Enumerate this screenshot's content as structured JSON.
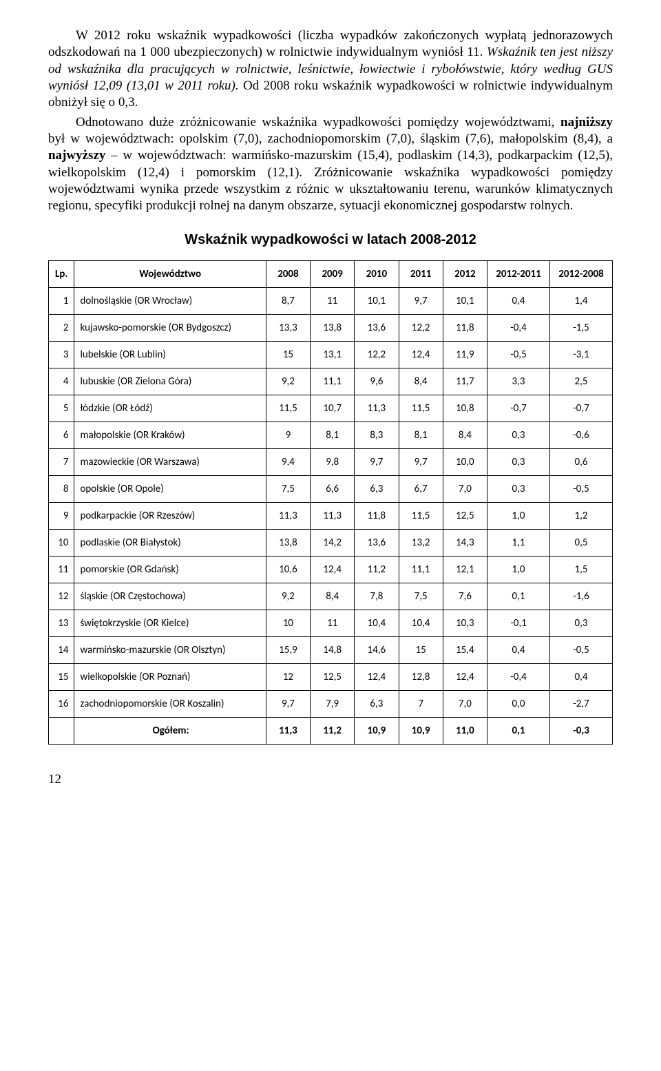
{
  "paragraphs": {
    "p1_a": "W 2012 roku wskaźnik wypadkowości (liczba wypadków zakończonych wypłatą jednorazowych odszkodowań na 1 000 ubezpieczonych) w rolnictwie indywidualnym wyniósł 11.",
    "p1_b_italic": "Wskaźnik ten jest niższy od wskaźnika dla pracujących w rolnictwie, leśnictwie, łowiectwie i rybołówstwie, który według GUS wyniósł 12,09 (13,01 w 2011 roku).",
    "p1_c": " Od 2008 roku wskaźnik wypadkowości w rolnictwie indywidualnym obniżył się o 0,3.",
    "p2_a": "Odnotowano duże zróżnicowanie wskaźnika wypadkowości pomiędzy województwami, ",
    "p2_bold1": "najniższy",
    "p2_b": " był w województwach: opolskim (7,0), zachodniopomorskim (7,0), śląskim (7,6), małopolskim (8,4), a ",
    "p2_bold2": "najwyższy",
    "p2_c": " – w województwach: warmińsko-mazurskim (15,4), podlaskim (14,3), podkarpackim (12,5), wielkopolskim (12,4) i pomorskim (12,1). Zróżnicowanie wskaźnika wypadkowości pomiędzy województwami wynika przede wszystkim z różnic w ukształtowaniu terenu, warunków klimatycznych regionu, specyfiki produkcji rolnej na danym obszarze, sytuacji ekonomicznej gospodarstw rolnych."
  },
  "table_title": "Wskaźnik wypadkowości w latach 2008-2012",
  "columns": [
    "Lp.",
    "Województwo",
    "2008",
    "2009",
    "2010",
    "2011",
    "2012",
    "2012-2011",
    "2012-2008"
  ],
  "rows": [
    [
      "1",
      "dolnośląskie (OR Wrocław)",
      "8,7",
      "11",
      "10,1",
      "9,7",
      "10,1",
      "0,4",
      "1,4"
    ],
    [
      "2",
      "kujawsko-pomorskie (OR Bydgoszcz)",
      "13,3",
      "13,8",
      "13,6",
      "12,2",
      "11,8",
      "-0,4",
      "-1,5"
    ],
    [
      "3",
      "lubelskie (OR Lublin)",
      "15",
      "13,1",
      "12,2",
      "12,4",
      "11,9",
      "-0,5",
      "-3,1"
    ],
    [
      "4",
      "lubuskie (OR Zielona Góra)",
      "9,2",
      "11,1",
      "9,6",
      "8,4",
      "11,7",
      "3,3",
      "2,5"
    ],
    [
      "5",
      "łódzkie (OR Łódź)",
      "11,5",
      "10,7",
      "11,3",
      "11,5",
      "10,8",
      "-0,7",
      "-0,7"
    ],
    [
      "6",
      "małopolskie (OR Kraków)",
      "9",
      "8,1",
      "8,3",
      "8,1",
      "8,4",
      "0,3",
      "-0,6"
    ],
    [
      "7",
      "mazowieckie (OR Warszawa)",
      "9,4",
      "9,8",
      "9,7",
      "9,7",
      "10,0",
      "0,3",
      "0,6"
    ],
    [
      "8",
      "opolskie (OR Opole)",
      "7,5",
      "6,6",
      "6,3",
      "6,7",
      "7,0",
      "0,3",
      "-0,5"
    ],
    [
      "9",
      "podkarpackie (OR Rzeszów)",
      "11,3",
      "11,3",
      "11,8",
      "11,5",
      "12,5",
      "1,0",
      "1,2"
    ],
    [
      "10",
      "podlaskie (OR Białystok)",
      "13,8",
      "14,2",
      "13,6",
      "13,2",
      "14,3",
      "1,1",
      "0,5"
    ],
    [
      "11",
      "pomorskie (OR Gdańsk)",
      "10,6",
      "12,4",
      "11,2",
      "11,1",
      "12,1",
      "1,0",
      "1,5"
    ],
    [
      "12",
      "śląskie (OR Częstochowa)",
      "9,2",
      "8,4",
      "7,8",
      "7,5",
      "7,6",
      "0,1",
      "-1,6"
    ],
    [
      "13",
      "świętokrzyskie (OR Kielce)",
      "10",
      "11",
      "10,4",
      "10,4",
      "10,3",
      "-0,1",
      "0,3"
    ],
    [
      "14",
      "warmińsko-mazurskie (OR Olsztyn)",
      "15,9",
      "14,8",
      "14,6",
      "15",
      "15,4",
      "0,4",
      "-0,5"
    ],
    [
      "15",
      "wielkopolskie (OR Poznań)",
      "12",
      "12,5",
      "12,4",
      "12,8",
      "12,4",
      "-0,4",
      "0,4"
    ],
    [
      "16",
      "zachodniopomorskie (OR Koszalin)",
      "9,7",
      "7,9",
      "6,3",
      "7",
      "7,0",
      "0,0",
      "-2,7"
    ]
  ],
  "total": [
    "",
    "Ogółem:",
    "11,3",
    "11,2",
    "10,9",
    "10,9",
    "11,0",
    "0,1",
    "-0,3"
  ],
  "page_number": "12"
}
